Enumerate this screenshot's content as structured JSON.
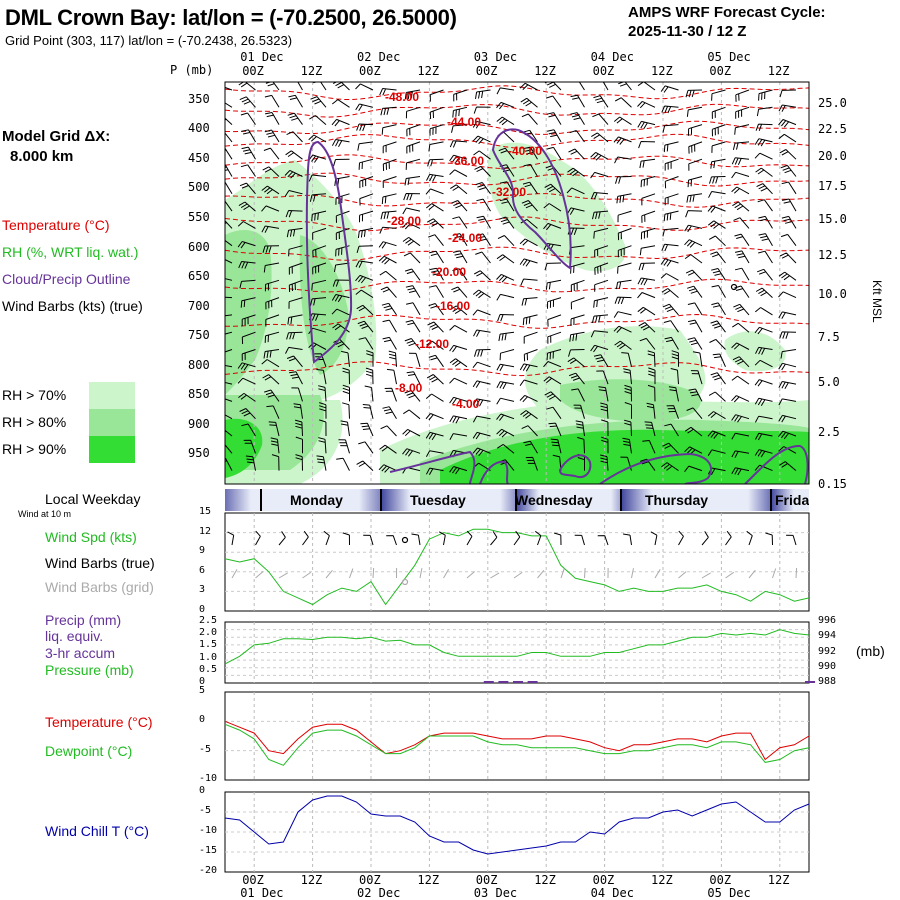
{
  "header": {
    "title": "DML Crown Bay:  lat/lon = (-70.2500, 26.5000)",
    "gridpoint": "Grid Point (303, 117) lat/lon = (-70.2438, 26.5323)",
    "cycle_title": "AMPS WRF Forecast Cycle:",
    "cycle_value": "2025-11-30 / 12  Z"
  },
  "left_legend": {
    "model_grid": "Model Grid ΔX:",
    "model_grid_value": "8.000 km",
    "temperature": "Temperature (°C)",
    "rh": "RH (%, WRT liq. wat.)",
    "cloud": "Cloud/Precip Outline",
    "wind": "Wind Barbs (kts) (true)",
    "rh70": "RH > 70%",
    "rh80": "RH > 80%",
    "rh90": "RH > 90%"
  },
  "colors": {
    "rh70": "#ccf5cc",
    "rh80": "#99e699",
    "rh90": "#33dd33",
    "temp": "#dd0000",
    "rh_label": "#22bb22",
    "cloud": "#663399",
    "wind_grid": "#aaaaaa",
    "windchill": "#0000aa",
    "band": "#3a3f99"
  },
  "time_axis": {
    "top_dates": [
      "01 Dec",
      "02 Dec",
      "03 Dec",
      "04 Dec",
      "05 Dec"
    ],
    "hour_labels": [
      "00Z",
      "12Z",
      "00Z",
      "12Z",
      "00Z",
      "12Z",
      "00Z",
      "12Z",
      "00Z",
      "12Z"
    ],
    "bottom_dates": [
      "01 Dec",
      "02 Dec",
      "03 Dec",
      "04 Dec",
      "05 Dec"
    ],
    "p_unit": "P (mb)"
  },
  "pressure_axis": {
    "levels": [
      "350",
      "400",
      "450",
      "500",
      "550",
      "600",
      "650",
      "700",
      "750",
      "800",
      "850",
      "900",
      "950"
    ],
    "kft": [
      "25.0",
      "22.5",
      "20.0",
      "17.5",
      "15.0",
      "12.5",
      "10.0",
      "7.5",
      "5.0",
      "2.5",
      "0.15"
    ],
    "kft_label": "Kft MSL"
  },
  "temperature_labels": [
    "-48.00",
    "-44.00",
    "-40.00",
    "-36.00",
    "-32.00",
    "-28.00",
    "-24.00",
    "-20.00",
    "-16.00",
    "-12.00",
    "-8.00",
    "-4.00"
  ],
  "weekday_band": {
    "title": "Local Weekday",
    "days": [
      "Monday",
      "Tuesday",
      "Wednesday",
      "Thursday",
      "Frida"
    ]
  },
  "panel_wind": {
    "title": "Wind at 10 m",
    "l1": "Wind Spd (kts)",
    "l2": "Wind Barbs (true)",
    "l3": "Wind Barbs (grid)",
    "ticks": [
      "15",
      "12",
      "9",
      "6",
      "3",
      "0"
    ]
  },
  "panel_precip": {
    "l1": "Precip (mm)",
    "l2": "liq. equiv.",
    "l3": "3-hr accum",
    "l4": "Pressure (mb)",
    "left_ticks": [
      "2.5",
      "2.0",
      "1.5",
      "1.0",
      "0.5",
      "0"
    ],
    "right_ticks": [
      "996",
      "994",
      "992",
      "990",
      "988"
    ],
    "right_unit": "(mb)"
  },
  "panel_temp": {
    "l1": "Temperature (°C)",
    "l2": "Dewpoint (°C)",
    "ticks": [
      "5",
      "0",
      "-5",
      "-10"
    ]
  },
  "panel_chill": {
    "l1": "Wind Chill T (°C)",
    "ticks": [
      "0",
      "-5",
      "-10",
      "-15",
      "-20"
    ]
  },
  "chart_data": [
    {
      "type": "line",
      "name": "time-height cross section",
      "x_unit": "forecast hour",
      "xlim": [
        0,
        120
      ],
      "y_unit": "pressure (mb)",
      "ylim": [
        1000,
        320
      ],
      "temperature_isotherms": [
        -48,
        -44,
        -40,
        -36,
        -32,
        -28,
        -24,
        -20,
        -16,
        -12,
        -8,
        -4
      ]
    },
    {
      "type": "line",
      "name": "wind speed",
      "ylim": [
        0,
        15
      ],
      "x": [
        0,
        3,
        6,
        9,
        12,
        15,
        18,
        21,
        24,
        27,
        30,
        33,
        36,
        39,
        42,
        45,
        48,
        51,
        54,
        57,
        60,
        63,
        66,
        69,
        72,
        75,
        78,
        81,
        84,
        87,
        90,
        93,
        96,
        99,
        102,
        105,
        108,
        111,
        114,
        117,
        120
      ],
      "series": [
        {
          "name": "Wind Spd (kts)",
          "values": [
            8,
            7.5,
            8,
            6,
            3,
            2,
            1,
            2.5,
            3.5,
            3,
            4.5,
            1,
            4,
            7,
            11,
            12,
            11.5,
            12.5,
            12.5,
            12,
            12,
            11.5,
            11.5,
            7,
            5,
            4.5,
            4,
            3,
            3.5,
            3,
            3,
            3.5,
            3.5,
            4,
            3,
            2.5,
            1.5,
            3,
            2.5,
            1.5,
            2
          ]
        }
      ]
    },
    {
      "type": "line",
      "name": "precip and pressure",
      "x": [
        0,
        3,
        6,
        9,
        12,
        15,
        18,
        21,
        24,
        27,
        30,
        33,
        36,
        39,
        42,
        45,
        48,
        51,
        54,
        57,
        60,
        63,
        66,
        69,
        72,
        75,
        78,
        81,
        84,
        87,
        90,
        93,
        96,
        99,
        102,
        105,
        108,
        111,
        114,
        117,
        120
      ],
      "series": [
        {
          "name": "Pressure (mb)",
          "axis": "right",
          "ylim": [
            988,
            996
          ],
          "values": [
            990.5,
            991.5,
            993,
            993.2,
            993.8,
            993.8,
            993.7,
            994,
            994,
            993.8,
            994,
            993.5,
            993.6,
            993,
            993,
            992,
            991.5,
            991.5,
            991.5,
            991.5,
            991.5,
            992,
            992,
            991.5,
            991.5,
            991.5,
            992,
            992,
            992.5,
            993,
            993,
            993.5,
            994,
            994,
            994.5,
            994.3,
            994.5,
            994.3,
            995,
            994.5,
            994.3
          ]
        },
        {
          "name": "Precip (mm)",
          "axis": "left",
          "ylim": [
            0,
            2.5
          ],
          "values": [
            0,
            0,
            0,
            0,
            0,
            0,
            0,
            0,
            0,
            0,
            0,
            0,
            0,
            0,
            0,
            0,
            0,
            0,
            0.05,
            0.05,
            0.05,
            0.05,
            0,
            0,
            0,
            0,
            0,
            0,
            0,
            0,
            0,
            0,
            0,
            0,
            0,
            0,
            0,
            0,
            0,
            0,
            0.03
          ]
        }
      ]
    },
    {
      "type": "line",
      "name": "temperature and dewpoint",
      "ylim": [
        -10,
        5
      ],
      "x": [
        0,
        3,
        6,
        9,
        12,
        15,
        18,
        21,
        24,
        27,
        30,
        33,
        36,
        39,
        42,
        45,
        48,
        51,
        54,
        57,
        60,
        63,
        66,
        69,
        72,
        75,
        78,
        81,
        84,
        87,
        90,
        93,
        96,
        99,
        102,
        105,
        108,
        111,
        114,
        117,
        120
      ],
      "series": [
        {
          "name": "Temperature (°C)",
          "values": [
            0,
            -1,
            -2,
            -5,
            -5.5,
            -3,
            -1,
            -0.5,
            -0.5,
            -1.5,
            -3.5,
            -5.5,
            -5,
            -4,
            -2.5,
            -2,
            -2,
            -2,
            -2.5,
            -3,
            -3,
            -3,
            -2.5,
            -2.5,
            -3,
            -3.5,
            -4.5,
            -5,
            -4,
            -4,
            -3.5,
            -3,
            -3,
            -3.5,
            -2.5,
            -2,
            -2,
            -6.5,
            -4.5,
            -4,
            -2.5
          ]
        },
        {
          "name": "Dewpoint (°C)",
          "values": [
            -0.5,
            -1.5,
            -3,
            -6.5,
            -7.5,
            -4.5,
            -2,
            -1.5,
            -1.5,
            -2.5,
            -4,
            -5.5,
            -5.5,
            -4.5,
            -2.5,
            -2.5,
            -2.5,
            -2.5,
            -3.5,
            -4,
            -4,
            -4.5,
            -4.5,
            -4.5,
            -4.5,
            -5,
            -5.5,
            -5.5,
            -5,
            -5,
            -4.5,
            -4,
            -4,
            -4.5,
            -3.5,
            -3.5,
            -4,
            -7,
            -6.5,
            -5,
            -4.5
          ]
        }
      ]
    },
    {
      "type": "line",
      "name": "wind chill",
      "ylim": [
        -20,
        0
      ],
      "x": [
        0,
        3,
        6,
        9,
        12,
        15,
        18,
        21,
        24,
        27,
        30,
        33,
        36,
        39,
        42,
        45,
        48,
        51,
        54,
        57,
        60,
        63,
        66,
        69,
        72,
        75,
        78,
        81,
        84,
        87,
        90,
        93,
        96,
        99,
        102,
        105,
        108,
        111,
        114,
        117,
        120
      ],
      "series": [
        {
          "name": "Wind Chill T (°C)",
          "values": [
            -6.5,
            -7,
            -10,
            -13,
            -12.5,
            -5,
            -2,
            -1,
            -1,
            -2.5,
            -5.5,
            -6,
            -6,
            -7.5,
            -11,
            -12.5,
            -12.5,
            -14.5,
            -15.5,
            -15,
            -14.5,
            -14,
            -13.5,
            -12.5,
            -12.5,
            -10,
            -10.5,
            -7.5,
            -6.5,
            -6.5,
            -5,
            -4.5,
            -6,
            -4.5,
            -3,
            -2.5,
            -5,
            -7.5,
            -7.5,
            -4.5,
            -3
          ]
        }
      ]
    }
  ]
}
